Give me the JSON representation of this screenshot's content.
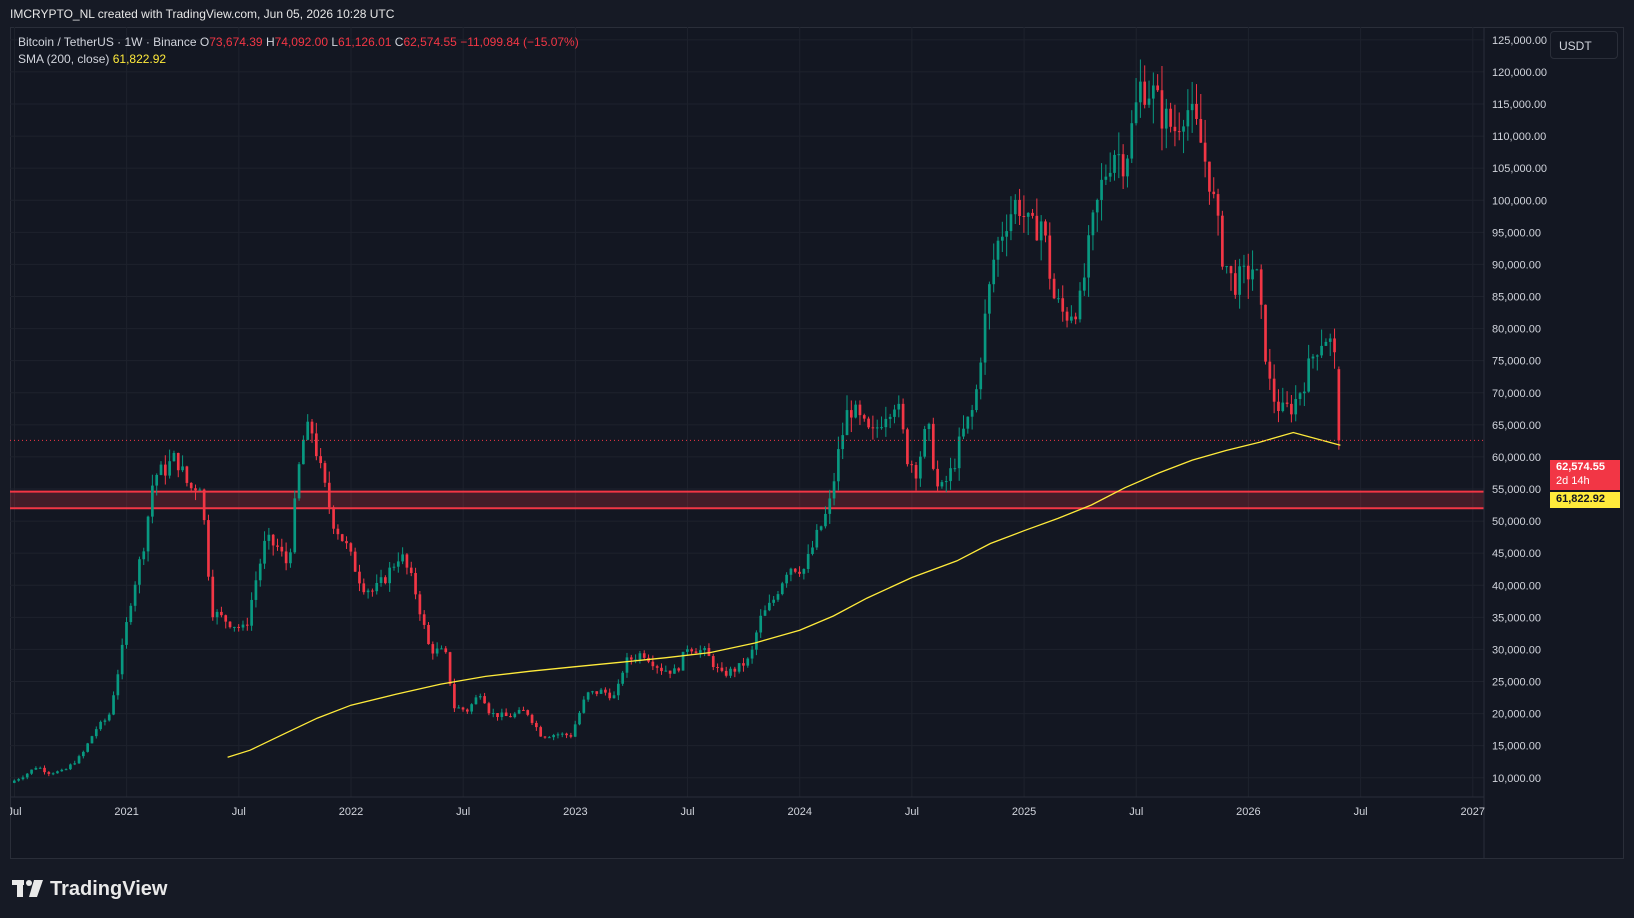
{
  "header": {
    "attribution": "IMCRYPTO_NL created with TradingView.com, Jun 05, 2026 10:28 UTC"
  },
  "legend": {
    "symbol": "Bitcoin / TetherUS · 1W · Binance",
    "ohlc": {
      "o_label": "O",
      "o": "73,674.39",
      "h_label": "H",
      "h": "74,092.00",
      "l_label": "L",
      "l": "61,126.01",
      "c_label": "C",
      "c": "62,574.55",
      "change": "−11,099.84 (−15.07%)"
    },
    "indicator": "SMA (200, close)",
    "indicator_value": "61,822.92"
  },
  "axis": {
    "unit": "USDT",
    "last_price": "62,574.55",
    "countdown": "2d 14h",
    "sma_price": "61,822.92"
  },
  "footer": {
    "brand": "TradingView"
  },
  "colors": {
    "up": "#089981",
    "down": "#f23645",
    "sma": "#ffeb3b",
    "zone": "#f23645",
    "background": "#131722"
  },
  "chart_data": {
    "type": "candlestick",
    "interval": "1W",
    "ylim": [
      7000,
      127000
    ],
    "y_ticks": [
      10000,
      15000,
      20000,
      25000,
      30000,
      35000,
      40000,
      45000,
      50000,
      55000,
      60000,
      65000,
      70000,
      75000,
      80000,
      85000,
      90000,
      95000,
      100000,
      105000,
      110000,
      115000,
      120000,
      125000
    ],
    "y_tick_labels": [
      "10,000.00",
      "15,000.00",
      "20,000.00",
      "25,000.00",
      "30,000.00",
      "35,000.00",
      "40,000.00",
      "45,000.00",
      "50,000.00",
      "55,000.00",
      "60,000.00",
      "65,000.00",
      "70,000.00",
      "75,000.00",
      "80,000.00",
      "85,000.00",
      "90,000.00",
      "95,000.00",
      "100,000.00",
      "105,000.00",
      "110,000.00",
      "115,000.00",
      "120,000.00",
      "125,000.00"
    ],
    "x_ticks": [
      {
        "label": "Jul",
        "t": 2020.5
      },
      {
        "label": "2021",
        "t": 2021.0
      },
      {
        "label": "Jul",
        "t": 2021.5
      },
      {
        "label": "2022",
        "t": 2022.0
      },
      {
        "label": "Jul",
        "t": 2022.5
      },
      {
        "label": "2023",
        "t": 2023.0
      },
      {
        "label": "Jul",
        "t": 2023.5
      },
      {
        "label": "2024",
        "t": 2024.0
      },
      {
        "label": "Jul",
        "t": 2024.5
      },
      {
        "label": "2025",
        "t": 2025.0
      },
      {
        "label": "Jul",
        "t": 2025.5
      },
      {
        "label": "2026",
        "t": 2026.0
      },
      {
        "label": "Jul",
        "t": 2026.5
      },
      {
        "label": "2027",
        "t": 2027.0
      }
    ],
    "xlim": [
      2020.48,
      2027.05
    ],
    "support_zone": {
      "low": 52000,
      "high": 54600
    },
    "price_path": [
      [
        2020.48,
        9200
      ],
      [
        2020.55,
        10500
      ],
      [
        2020.6,
        11800
      ],
      [
        2020.65,
        10800
      ],
      [
        2020.72,
        11000
      ],
      [
        2020.8,
        13500
      ],
      [
        2020.86,
        17500
      ],
      [
        2020.92,
        19500
      ],
      [
        2020.97,
        28000
      ],
      [
        2021.02,
        38000
      ],
      [
        2021.08,
        47000
      ],
      [
        2021.12,
        57000
      ],
      [
        2021.17,
        58000
      ],
      [
        2021.22,
        60000
      ],
      [
        2021.28,
        55000
      ],
      [
        2021.33,
        56000
      ],
      [
        2021.38,
        36000
      ],
      [
        2021.42,
        35000
      ],
      [
        2021.47,
        34000
      ],
      [
        2021.53,
        33000
      ],
      [
        2021.57,
        40000
      ],
      [
        2021.62,
        47000
      ],
      [
        2021.67,
        46000
      ],
      [
        2021.72,
        43000
      ],
      [
        2021.78,
        62000
      ],
      [
        2021.82,
        65000
      ],
      [
        2021.87,
        57000
      ],
      [
        2021.92,
        50000
      ],
      [
        2021.98,
        46000
      ],
      [
        2022.05,
        40000
      ],
      [
        2022.1,
        39000
      ],
      [
        2022.15,
        41000
      ],
      [
        2022.22,
        45000
      ],
      [
        2022.28,
        40000
      ],
      [
        2022.35,
        30000
      ],
      [
        2022.42,
        29500
      ],
      [
        2022.46,
        21000
      ],
      [
        2022.52,
        20500
      ],
      [
        2022.58,
        23500
      ],
      [
        2022.62,
        20000
      ],
      [
        2022.7,
        19500
      ],
      [
        2022.78,
        20500
      ],
      [
        2022.85,
        16500
      ],
      [
        2022.92,
        16800
      ],
      [
        2022.98,
        16600
      ],
      [
        2023.05,
        23000
      ],
      [
        2023.12,
        23500
      ],
      [
        2023.18,
        22500
      ],
      [
        2023.22,
        28000
      ],
      [
        2023.3,
        29500
      ],
      [
        2023.38,
        27000
      ],
      [
        2023.45,
        26500
      ],
      [
        2023.5,
        30500
      ],
      [
        2023.58,
        29500
      ],
      [
        2023.65,
        26000
      ],
      [
        2023.72,
        27000
      ],
      [
        2023.78,
        28500
      ],
      [
        2023.82,
        34500
      ],
      [
        2023.88,
        37500
      ],
      [
        2023.95,
        43000
      ],
      [
        2024.02,
        42500
      ],
      [
        2024.08,
        48000
      ],
      [
        2024.13,
        52000
      ],
      [
        2024.18,
        62000
      ],
      [
        2024.22,
        68000
      ],
      [
        2024.28,
        65000
      ],
      [
        2024.32,
        63000
      ],
      [
        2024.38,
        67000
      ],
      [
        2024.43,
        69000
      ],
      [
        2024.48,
        60000
      ],
      [
        2024.52,
        58000
      ],
      [
        2024.57,
        65000
      ],
      [
        2024.62,
        54000
      ],
      [
        2024.68,
        58000
      ],
      [
        2024.72,
        63000
      ],
      [
        2024.78,
        68000
      ],
      [
        2024.82,
        80000
      ],
      [
        2024.87,
        92000
      ],
      [
        2024.92,
        97000
      ],
      [
        2024.97,
        100000
      ],
      [
        2025.03,
        95000
      ],
      [
        2025.08,
        97000
      ],
      [
        2025.13,
        85000
      ],
      [
        2025.18,
        82000
      ],
      [
        2025.25,
        84000
      ],
      [
        2025.3,
        95000
      ],
      [
        2025.35,
        103000
      ],
      [
        2025.4,
        108000
      ],
      [
        2025.45,
        106000
      ],
      [
        2025.52,
        118000
      ],
      [
        2025.57,
        117000
      ],
      [
        2025.62,
        113000
      ],
      [
        2025.67,
        111000
      ],
      [
        2025.72,
        115000
      ],
      [
        2025.78,
        110000
      ],
      [
        2025.83,
        103000
      ],
      [
        2025.88,
        92000
      ],
      [
        2025.93,
        87000
      ],
      [
        2025.98,
        88000
      ],
      [
        2026.03,
        90000
      ],
      [
        2026.07,
        78000
      ],
      [
        2026.1,
        70000
      ],
      [
        2026.15,
        67000
      ],
      [
        2026.2,
        68000
      ],
      [
        2026.25,
        72000
      ],
      [
        2026.3,
        77000
      ],
      [
        2026.34,
        79000
      ],
      [
        2026.38,
        77000
      ],
      [
        2026.41,
        62574.55
      ]
    ],
    "sma_200": [
      [
        2021.45,
        13200
      ],
      [
        2021.55,
        14300
      ],
      [
        2021.7,
        16800
      ],
      [
        2021.85,
        19300
      ],
      [
        2022.0,
        21300
      ],
      [
        2022.2,
        23000
      ],
      [
        2022.4,
        24600
      ],
      [
        2022.6,
        25800
      ],
      [
        2022.8,
        26600
      ],
      [
        2023.0,
        27300
      ],
      [
        2023.2,
        28000
      ],
      [
        2023.4,
        28700
      ],
      [
        2023.6,
        29500
      ],
      [
        2023.8,
        31000
      ],
      [
        2024.0,
        33000
      ],
      [
        2024.15,
        35200
      ],
      [
        2024.3,
        38000
      ],
      [
        2024.5,
        41200
      ],
      [
        2024.7,
        43800
      ],
      [
        2024.85,
        46500
      ],
      [
        2025.0,
        48500
      ],
      [
        2025.15,
        50400
      ],
      [
        2025.3,
        52500
      ],
      [
        2025.45,
        55200
      ],
      [
        2025.6,
        57500
      ],
      [
        2025.75,
        59500
      ],
      [
        2025.9,
        61000
      ],
      [
        2026.05,
        62300
      ],
      [
        2026.2,
        63800
      ],
      [
        2026.41,
        61822.92
      ]
    ]
  }
}
